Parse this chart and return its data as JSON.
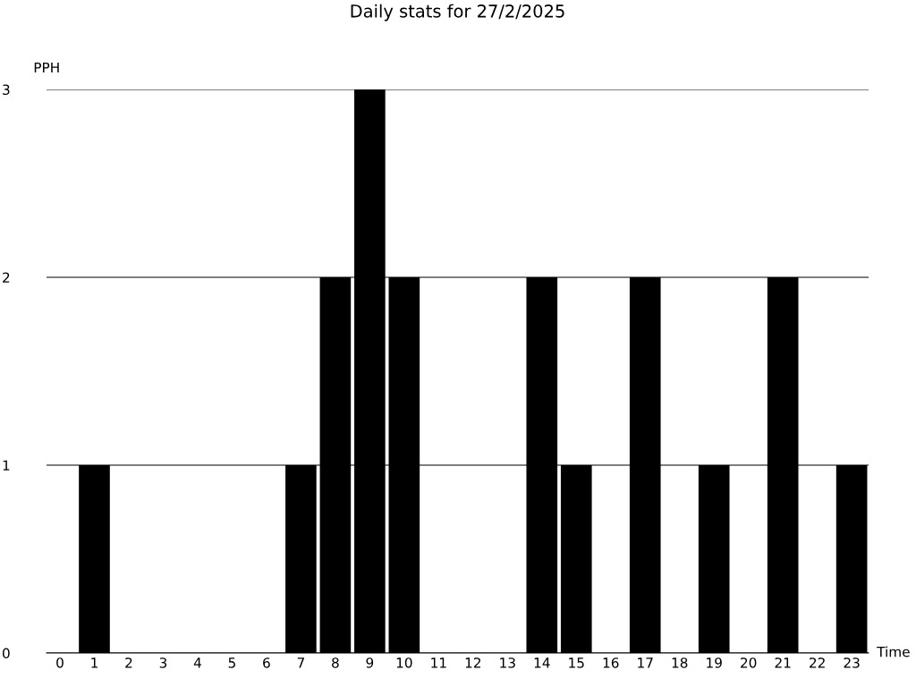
{
  "chart_data": {
    "type": "bar",
    "title": "Daily stats for 27/2/2025",
    "xlabel": "Time",
    "ylabel": "PPH",
    "categories": [
      "0",
      "1",
      "2",
      "3",
      "4",
      "5",
      "6",
      "7",
      "8",
      "9",
      "10",
      "11",
      "12",
      "13",
      "14",
      "15",
      "16",
      "17",
      "18",
      "19",
      "20",
      "21",
      "22",
      "23"
    ],
    "values": [
      0,
      1,
      0,
      0,
      0,
      0,
      0,
      1,
      2,
      3,
      2,
      0,
      0,
      0,
      2,
      1,
      0,
      2,
      0,
      1,
      0,
      2,
      0,
      1
    ],
    "color": "#000000",
    "ylim": [
      0,
      3
    ],
    "yticks": [
      0,
      1,
      2,
      3
    ],
    "grid": "y",
    "legend": false
  }
}
